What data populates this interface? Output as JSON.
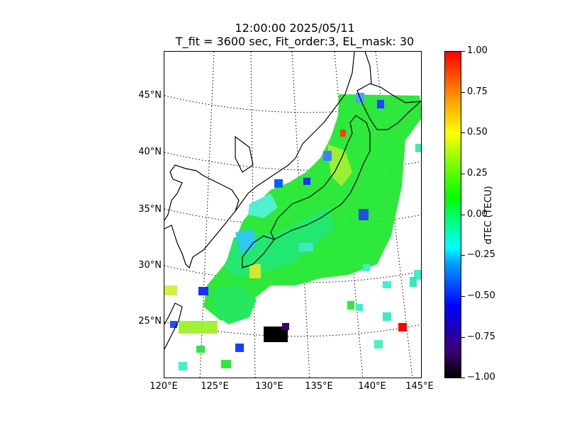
{
  "figure": {
    "title_line1": "12:00:00 2025/05/11",
    "title_line2": "T_fit = 3600 sec, Fit_order:3, EL_mask: 30"
  },
  "map": {
    "lat_labels": [
      "45°N",
      "40°N",
      "35°N",
      "30°N",
      "25°N"
    ],
    "lon_labels": [
      "120°E",
      "125°E",
      "130°E",
      "135°E",
      "140°E",
      "145°E"
    ]
  },
  "colorbar": {
    "label": "dTEC (TECU)",
    "ticks": [
      "1.00",
      "0.75",
      "0.50",
      "0.25",
      "0.00",
      "−0.25",
      "−0.50",
      "−0.75",
      "−1.00"
    ],
    "range": [
      -1.0,
      1.0
    ],
    "colormap_colors": [
      "#000000",
      "#0000ff",
      "#00ffff",
      "#00ff00",
      "#ffff00",
      "#ff0000"
    ]
  }
}
